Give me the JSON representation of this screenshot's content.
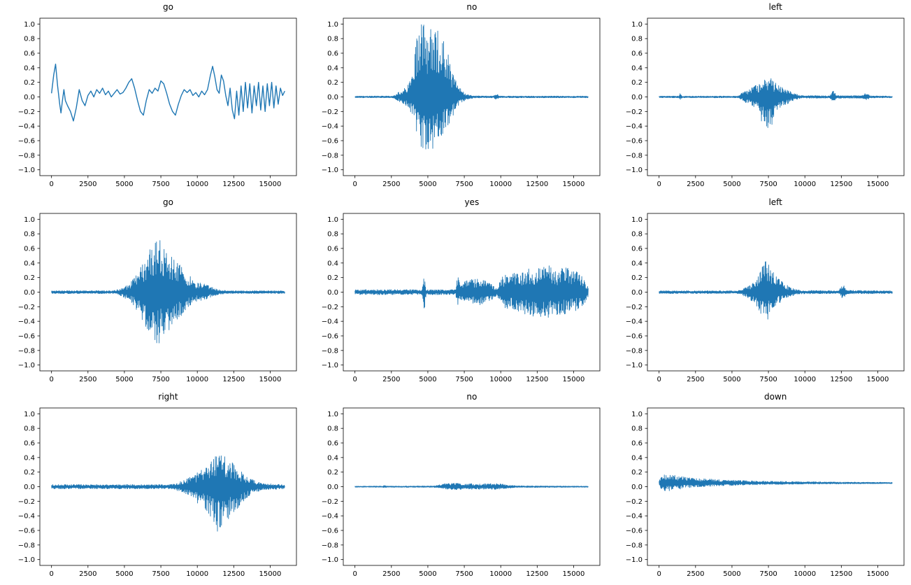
{
  "figure": {
    "background": "#ffffff",
    "line_color": "#1f77b4",
    "rows": 3,
    "cols": 3,
    "description": "3x3 grid of audio waveform line plots, matplotlib style"
  },
  "axes": {
    "xlim": [
      -800,
      16800
    ],
    "ylim": [
      -1.08,
      1.08
    ],
    "xticks": [
      0,
      2500,
      5000,
      7500,
      10000,
      12500,
      15000
    ],
    "yticks": [
      1.0,
      0.8,
      0.6,
      0.4,
      0.2,
      0.0,
      -0.2,
      -0.4,
      -0.6,
      -0.8,
      -1.0
    ],
    "grid": false,
    "xlabel": "",
    "ylabel": ""
  },
  "chart_data": [
    {
      "type": "line",
      "title": "go",
      "kind": "smooth",
      "points": [
        [
          0,
          0.05
        ],
        [
          150,
          0.3
        ],
        [
          280,
          0.45
        ],
        [
          420,
          0.15
        ],
        [
          560,
          -0.1
        ],
        [
          650,
          -0.22
        ],
        [
          750,
          -0.05
        ],
        [
          850,
          0.1
        ],
        [
          950,
          -0.05
        ],
        [
          1100,
          -0.12
        ],
        [
          1300,
          -0.2
        ],
        [
          1500,
          -0.33
        ],
        [
          1700,
          -0.15
        ],
        [
          1900,
          0.1
        ],
        [
          2100,
          -0.05
        ],
        [
          2300,
          -0.12
        ],
        [
          2500,
          0.02
        ],
        [
          2700,
          0.08
        ],
        [
          2900,
          0.0
        ],
        [
          3100,
          0.1
        ],
        [
          3300,
          0.05
        ],
        [
          3500,
          0.12
        ],
        [
          3700,
          0.03
        ],
        [
          3900,
          0.08
        ],
        [
          4100,
          0.0
        ],
        [
          4300,
          0.05
        ],
        [
          4500,
          0.1
        ],
        [
          4700,
          0.04
        ],
        [
          4900,
          0.06
        ],
        [
          5100,
          0.12
        ],
        [
          5300,
          0.2
        ],
        [
          5500,
          0.25
        ],
        [
          5700,
          0.12
        ],
        [
          5900,
          -0.05
        ],
        [
          6100,
          -0.2
        ],
        [
          6300,
          -0.25
        ],
        [
          6500,
          -0.05
        ],
        [
          6700,
          0.1
        ],
        [
          6900,
          0.05
        ],
        [
          7100,
          0.12
        ],
        [
          7300,
          0.08
        ],
        [
          7500,
          0.22
        ],
        [
          7700,
          0.18
        ],
        [
          7900,
          0.05
        ],
        [
          8100,
          -0.1
        ],
        [
          8300,
          -0.2
        ],
        [
          8500,
          -0.25
        ],
        [
          8700,
          -0.1
        ],
        [
          8900,
          0.02
        ],
        [
          9100,
          0.1
        ],
        [
          9300,
          0.06
        ],
        [
          9500,
          0.1
        ],
        [
          9700,
          0.02
        ],
        [
          9900,
          0.06
        ],
        [
          10100,
          0.0
        ],
        [
          10300,
          0.08
        ],
        [
          10500,
          0.03
        ],
        [
          10700,
          0.1
        ],
        [
          10900,
          0.3
        ],
        [
          11050,
          0.42
        ],
        [
          11200,
          0.28
        ],
        [
          11350,
          0.1
        ],
        [
          11500,
          0.05
        ],
        [
          11650,
          0.3
        ],
        [
          11800,
          0.22
        ],
        [
          11950,
          0.02
        ],
        [
          12100,
          -0.12
        ],
        [
          12250,
          0.12
        ],
        [
          12400,
          -0.18
        ],
        [
          12550,
          -0.3
        ],
        [
          12700,
          0.08
        ],
        [
          12850,
          -0.25
        ],
        [
          13000,
          0.15
        ],
        [
          13150,
          -0.2
        ],
        [
          13300,
          0.2
        ],
        [
          13450,
          -0.15
        ],
        [
          13600,
          0.18
        ],
        [
          13750,
          -0.22
        ],
        [
          13900,
          0.15
        ],
        [
          14050,
          -0.12
        ],
        [
          14200,
          0.2
        ],
        [
          14350,
          -0.18
        ],
        [
          14500,
          0.15
        ],
        [
          14650,
          -0.2
        ],
        [
          14800,
          0.18
        ],
        [
          14950,
          -0.12
        ],
        [
          15100,
          0.2
        ],
        [
          15250,
          -0.15
        ],
        [
          15400,
          0.15
        ],
        [
          15550,
          -0.1
        ],
        [
          15700,
          0.12
        ],
        [
          15850,
          0.02
        ],
        [
          16000,
          0.08
        ]
      ]
    },
    {
      "type": "line",
      "title": "no",
      "kind": "noise",
      "offset": 0,
      "envelope": [
        [
          0,
          0.012,
          0.012
        ],
        [
          2600,
          0.012,
          0.012
        ],
        [
          2900,
          0.05,
          0.05
        ],
        [
          3300,
          0.12,
          0.1
        ],
        [
          3700,
          0.2,
          0.18
        ],
        [
          4000,
          0.3,
          0.28
        ],
        [
          4200,
          0.85,
          0.55
        ],
        [
          4500,
          1.0,
          0.7
        ],
        [
          4800,
          1.0,
          0.78
        ],
        [
          5200,
          0.98,
          0.76
        ],
        [
          5500,
          0.95,
          0.7
        ],
        [
          5800,
          0.9,
          0.6
        ],
        [
          6100,
          0.8,
          0.5
        ],
        [
          6400,
          0.62,
          0.4
        ],
        [
          6700,
          0.35,
          0.28
        ],
        [
          7000,
          0.2,
          0.15
        ],
        [
          7300,
          0.1,
          0.08
        ],
        [
          7600,
          0.04,
          0.04
        ],
        [
          8200,
          0.015,
          0.015
        ],
        [
          9500,
          0.012,
          0.012
        ],
        [
          9700,
          0.05,
          0.04
        ],
        [
          9900,
          0.012,
          0.012
        ],
        [
          16000,
          0.012,
          0.012
        ]
      ]
    },
    {
      "type": "line",
      "title": "left",
      "kind": "noise",
      "offset": 0,
      "envelope": [
        [
          0,
          0.012,
          0.012
        ],
        [
          1350,
          0.012,
          0.012
        ],
        [
          1450,
          0.05,
          0.04
        ],
        [
          1600,
          0.012,
          0.012
        ],
        [
          5400,
          0.012,
          0.012
        ],
        [
          5700,
          0.06,
          0.05
        ],
        [
          6100,
          0.1,
          0.1
        ],
        [
          6500,
          0.15,
          0.15
        ],
        [
          6900,
          0.2,
          0.25
        ],
        [
          7200,
          0.28,
          0.45
        ],
        [
          7500,
          0.3,
          0.5
        ],
        [
          7800,
          0.22,
          0.35
        ],
        [
          8100,
          0.18,
          0.2
        ],
        [
          8500,
          0.12,
          0.12
        ],
        [
          9000,
          0.08,
          0.08
        ],
        [
          9400,
          0.04,
          0.04
        ],
        [
          9700,
          0.02,
          0.02
        ],
        [
          11700,
          0.015,
          0.015
        ],
        [
          11950,
          0.09,
          0.07
        ],
        [
          12200,
          0.02,
          0.02
        ],
        [
          13900,
          0.02,
          0.02
        ],
        [
          14200,
          0.06,
          0.05
        ],
        [
          14500,
          0.015,
          0.015
        ],
        [
          16000,
          0.012,
          0.012
        ]
      ]
    },
    {
      "type": "line",
      "title": "go",
      "kind": "noise",
      "offset": 0,
      "envelope": [
        [
          0,
          0.02,
          0.02
        ],
        [
          4200,
          0.02,
          0.02
        ],
        [
          4700,
          0.05,
          0.05
        ],
        [
          5200,
          0.1,
          0.1
        ],
        [
          5600,
          0.18,
          0.18
        ],
        [
          6000,
          0.3,
          0.3
        ],
        [
          6400,
          0.45,
          0.45
        ],
        [
          6800,
          0.62,
          0.6
        ],
        [
          7100,
          0.72,
          0.7
        ],
        [
          7300,
          0.76,
          0.74
        ],
        [
          7600,
          0.68,
          0.66
        ],
        [
          8000,
          0.58,
          0.56
        ],
        [
          8400,
          0.48,
          0.46
        ],
        [
          8800,
          0.38,
          0.36
        ],
        [
          9200,
          0.28,
          0.26
        ],
        [
          9600,
          0.2,
          0.18
        ],
        [
          10000,
          0.13,
          0.12
        ],
        [
          10400,
          0.14,
          0.12
        ],
        [
          10800,
          0.09,
          0.08
        ],
        [
          11200,
          0.05,
          0.05
        ],
        [
          11600,
          0.03,
          0.03
        ],
        [
          12200,
          0.02,
          0.02
        ],
        [
          16000,
          0.02,
          0.02
        ]
      ]
    },
    {
      "type": "line",
      "title": "yes",
      "kind": "noise",
      "offset": 0,
      "envelope": [
        [
          0,
          0.035,
          0.035
        ],
        [
          4600,
          0.035,
          0.035
        ],
        [
          4750,
          0.25,
          0.25
        ],
        [
          4900,
          0.035,
          0.035
        ],
        [
          6900,
          0.035,
          0.035
        ],
        [
          7050,
          0.3,
          0.2
        ],
        [
          7200,
          0.12,
          0.1
        ],
        [
          7500,
          0.15,
          0.12
        ],
        [
          8000,
          0.18,
          0.15
        ],
        [
          8500,
          0.2,
          0.18
        ],
        [
          9000,
          0.16,
          0.14
        ],
        [
          9400,
          0.12,
          0.1
        ],
        [
          9700,
          0.06,
          0.05
        ],
        [
          10000,
          0.18,
          0.15
        ],
        [
          10400,
          0.28,
          0.25
        ],
        [
          10800,
          0.25,
          0.22
        ],
        [
          11200,
          0.3,
          0.28
        ],
        [
          11600,
          0.28,
          0.3
        ],
        [
          12000,
          0.35,
          0.32
        ],
        [
          12400,
          0.3,
          0.35
        ],
        [
          12800,
          0.4,
          0.35
        ],
        [
          13200,
          0.38,
          0.4
        ],
        [
          13600,
          0.32,
          0.3
        ],
        [
          14000,
          0.3,
          0.32
        ],
        [
          14400,
          0.36,
          0.3
        ],
        [
          14800,
          0.3,
          0.28
        ],
        [
          15200,
          0.28,
          0.25
        ],
        [
          15600,
          0.22,
          0.2
        ],
        [
          16000,
          0.1,
          0.08
        ]
      ]
    },
    {
      "type": "line",
      "title": "left",
      "kind": "noise",
      "offset": 0,
      "envelope": [
        [
          0,
          0.02,
          0.02
        ],
        [
          5400,
          0.02,
          0.02
        ],
        [
          5800,
          0.05,
          0.05
        ],
        [
          6200,
          0.1,
          0.1
        ],
        [
          6600,
          0.16,
          0.16
        ],
        [
          7000,
          0.3,
          0.3
        ],
        [
          7250,
          0.45,
          0.45
        ],
        [
          7500,
          0.38,
          0.36
        ],
        [
          7800,
          0.28,
          0.26
        ],
        [
          8200,
          0.18,
          0.16
        ],
        [
          8600,
          0.12,
          0.1
        ],
        [
          9000,
          0.07,
          0.06
        ],
        [
          9400,
          0.04,
          0.04
        ],
        [
          9800,
          0.025,
          0.025
        ],
        [
          12300,
          0.02,
          0.02
        ],
        [
          12600,
          0.11,
          0.09
        ],
        [
          12900,
          0.025,
          0.025
        ],
        [
          16000,
          0.02,
          0.02
        ]
      ]
    },
    {
      "type": "line",
      "title": "right",
      "kind": "noise",
      "offset": 0,
      "envelope": [
        [
          0,
          0.03,
          0.03
        ],
        [
          8200,
          0.03,
          0.03
        ],
        [
          8700,
          0.06,
          0.06
        ],
        [
          9200,
          0.1,
          0.1
        ],
        [
          9700,
          0.15,
          0.18
        ],
        [
          10200,
          0.22,
          0.25
        ],
        [
          10700,
          0.3,
          0.35
        ],
        [
          11100,
          0.4,
          0.5
        ],
        [
          11400,
          0.48,
          0.62
        ],
        [
          11700,
          0.45,
          0.55
        ],
        [
          12000,
          0.42,
          0.48
        ],
        [
          12400,
          0.35,
          0.4
        ],
        [
          12800,
          0.25,
          0.3
        ],
        [
          13200,
          0.18,
          0.2
        ],
        [
          13600,
          0.12,
          0.12
        ],
        [
          14000,
          0.08,
          0.08
        ],
        [
          14500,
          0.05,
          0.05
        ],
        [
          15000,
          0.04,
          0.04
        ],
        [
          16000,
          0.03,
          0.03
        ]
      ]
    },
    {
      "type": "line",
      "title": "no",
      "kind": "noise",
      "offset": 0,
      "envelope": [
        [
          0,
          0.008,
          0.008
        ],
        [
          1900,
          0.008,
          0.008
        ],
        [
          2050,
          0.02,
          0.015
        ],
        [
          2200,
          0.008,
          0.008
        ],
        [
          5400,
          0.01,
          0.01
        ],
        [
          5900,
          0.03,
          0.025
        ],
        [
          6400,
          0.05,
          0.04
        ],
        [
          7000,
          0.05,
          0.045
        ],
        [
          7600,
          0.04,
          0.035
        ],
        [
          8200,
          0.045,
          0.04
        ],
        [
          8800,
          0.04,
          0.035
        ],
        [
          9400,
          0.05,
          0.04
        ],
        [
          10000,
          0.04,
          0.035
        ],
        [
          10600,
          0.02,
          0.02
        ],
        [
          11200,
          0.012,
          0.012
        ],
        [
          16000,
          0.008,
          0.008
        ]
      ]
    },
    {
      "type": "line",
      "title": "down",
      "kind": "noise",
      "offset": 0.05,
      "envelope": [
        [
          0,
          0.06,
          0.06
        ],
        [
          250,
          0.1,
          0.1
        ],
        [
          500,
          0.13,
          0.12
        ],
        [
          800,
          0.12,
          0.11
        ],
        [
          1100,
          0.11,
          0.1
        ],
        [
          1400,
          0.1,
          0.09
        ],
        [
          1800,
          0.08,
          0.07
        ],
        [
          2400,
          0.07,
          0.06
        ],
        [
          3000,
          0.06,
          0.05
        ],
        [
          4000,
          0.05,
          0.04
        ],
        [
          5000,
          0.04,
          0.035
        ],
        [
          6000,
          0.035,
          0.03
        ],
        [
          7000,
          0.03,
          0.025
        ],
        [
          8000,
          0.025,
          0.02
        ],
        [
          9000,
          0.022,
          0.018
        ],
        [
          10000,
          0.02,
          0.015
        ],
        [
          12000,
          0.015,
          0.012
        ],
        [
          14000,
          0.012,
          0.01
        ],
        [
          16000,
          0.01,
          0.008
        ]
      ]
    }
  ]
}
